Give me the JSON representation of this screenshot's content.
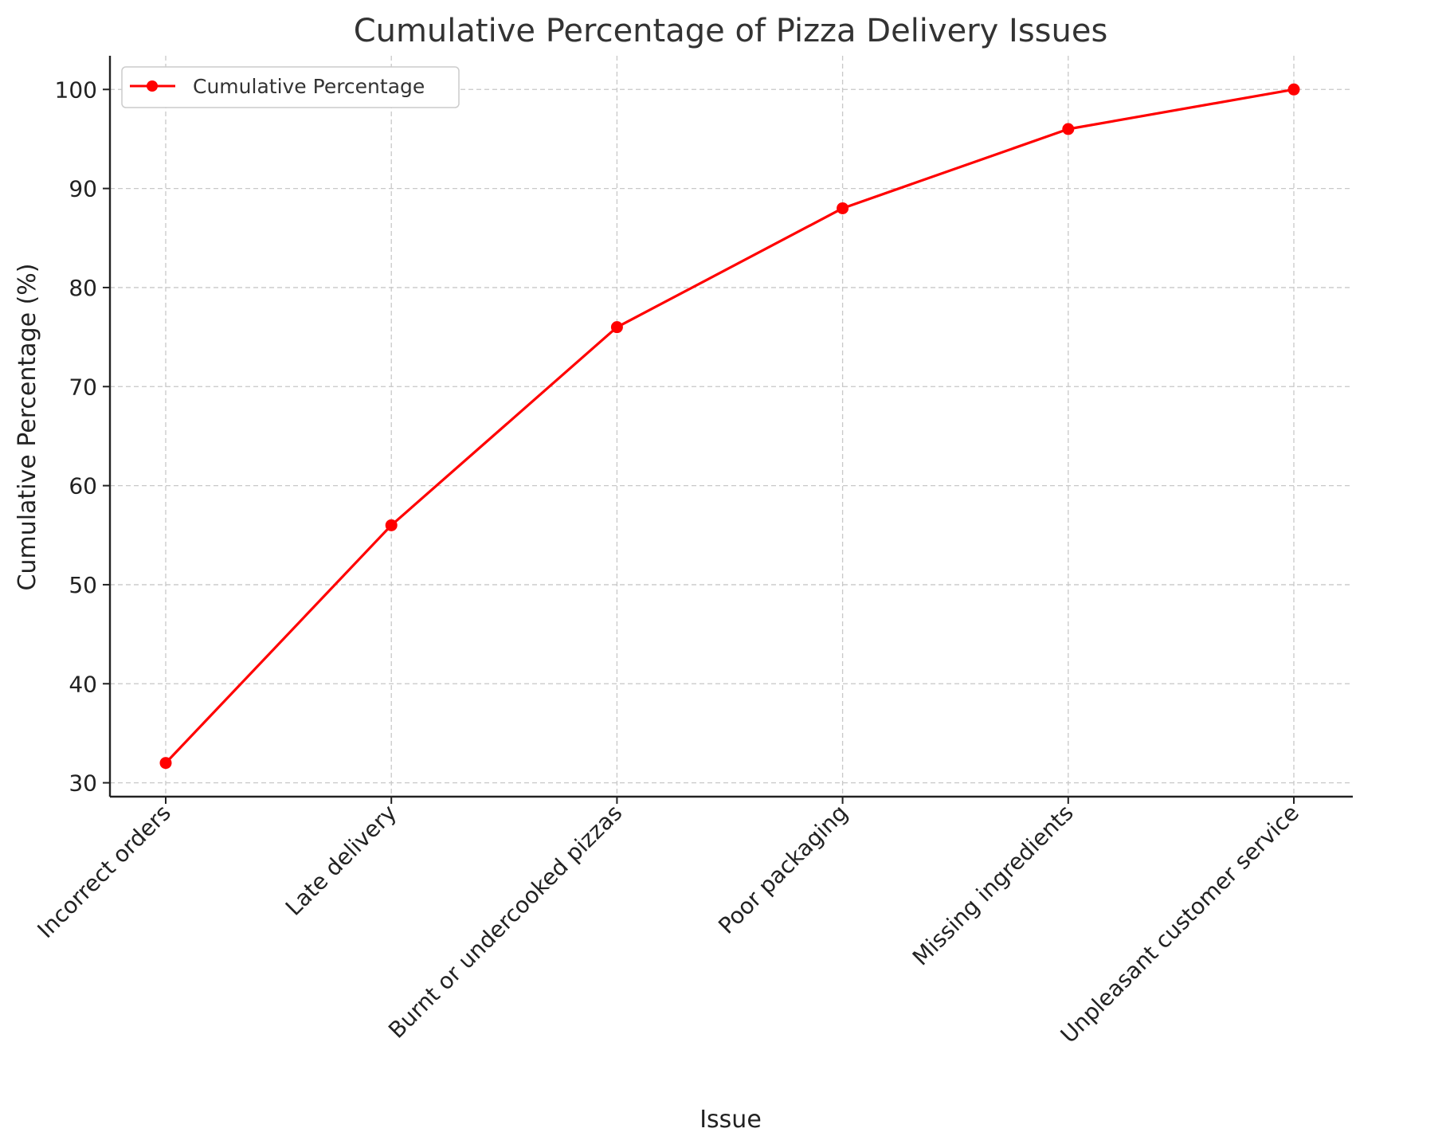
{
  "chart_data": {
    "type": "line",
    "title": "Cumulative Percentage of Pizza Delivery Issues",
    "xlabel": "Issue",
    "ylabel": "Cumulative Percentage (%)",
    "categories": [
      "Incorrect orders",
      "Late delivery",
      "Burnt or undercooked pizzas",
      "Poor packaging",
      "Missing ingredients",
      "Unpleasant customer service"
    ],
    "series": [
      {
        "name": "Cumulative Percentage",
        "values": [
          32,
          56,
          76,
          88,
          96,
          100
        ],
        "color": "#ff0000",
        "marker": "circle"
      }
    ],
    "yticks": [
      30,
      40,
      50,
      60,
      70,
      80,
      90,
      100
    ],
    "ylim": [
      28.6,
      103.4
    ],
    "grid": true,
    "legend_position": "top-left"
  }
}
